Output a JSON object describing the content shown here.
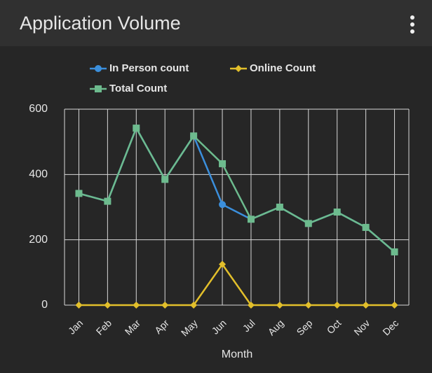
{
  "chart_data": {
    "type": "line",
    "title": "Application Volume",
    "categories": [
      "Jan",
      "Feb",
      "Mar",
      "Apr",
      "May",
      "Jun",
      "Jul",
      "Aug",
      "Sep",
      "Oct",
      "Nov",
      "Dec"
    ],
    "series": [
      {
        "name": "In Person count",
        "color": "#3b8fdc",
        "marker": "circle",
        "values": [
          342,
          318,
          542,
          385,
          518,
          308,
          263,
          300,
          250,
          285,
          238,
          163
        ]
      },
      {
        "name": "Online Count",
        "color": "#e2bf2b",
        "marker": "diamond",
        "values": [
          0,
          0,
          0,
          0,
          0,
          125,
          0,
          0,
          0,
          0,
          0,
          0
        ]
      },
      {
        "name": "Total Count",
        "color": "#6dbb8e",
        "marker": "square",
        "values": [
          342,
          318,
          542,
          385,
          518,
          433,
          263,
          300,
          250,
          285,
          238,
          163
        ]
      }
    ],
    "xlabel": "Month",
    "ylim": [
      0,
      600
    ],
    "yticks": [
      0,
      200,
      400,
      600
    ],
    "grid": true
  }
}
